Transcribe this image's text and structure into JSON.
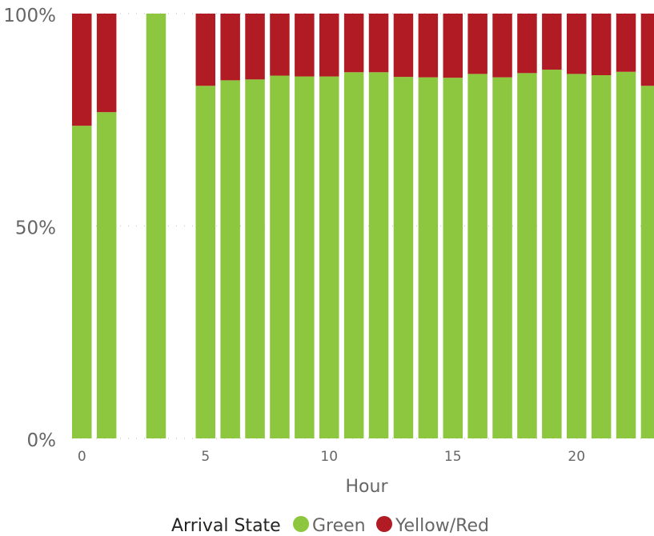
{
  "chart_data": {
    "type": "bar",
    "stacked": true,
    "percent": true,
    "xlabel": "Hour",
    "ylabel": "",
    "ylim": [
      0,
      100
    ],
    "yticks": [
      "0%",
      "50%",
      "100%"
    ],
    "xticks": [
      "0",
      "5",
      "10",
      "15",
      "20"
    ],
    "grid": true,
    "legend": {
      "title": "Arrival State",
      "position": "bottom",
      "items": [
        "Green",
        "Yellow/Red"
      ]
    },
    "categories": [
      0,
      1,
      2,
      3,
      4,
      5,
      6,
      7,
      8,
      9,
      10,
      11,
      12,
      13,
      14,
      15,
      16,
      17,
      18,
      19,
      20,
      21,
      22,
      23
    ],
    "series": [
      {
        "name": "Green",
        "color": "#8dc63f",
        "values": [
          73.6,
          76.8,
          null,
          100,
          null,
          83.0,
          84.3,
          84.5,
          85.4,
          85.2,
          85.2,
          86.2,
          86.2,
          85.1,
          85.0,
          84.9,
          85.8,
          85.0,
          86.0,
          86.8,
          85.8,
          85.5,
          86.3,
          83.0
        ]
      },
      {
        "name": "Yellow/Red",
        "color": "#b11c24",
        "values": [
          26.4,
          23.2,
          null,
          0,
          null,
          17.0,
          15.7,
          15.5,
          14.6,
          14.8,
          14.8,
          13.8,
          13.8,
          14.9,
          15.0,
          15.1,
          14.2,
          15.0,
          14.0,
          13.2,
          14.2,
          14.5,
          13.7,
          17.0
        ]
      }
    ]
  }
}
